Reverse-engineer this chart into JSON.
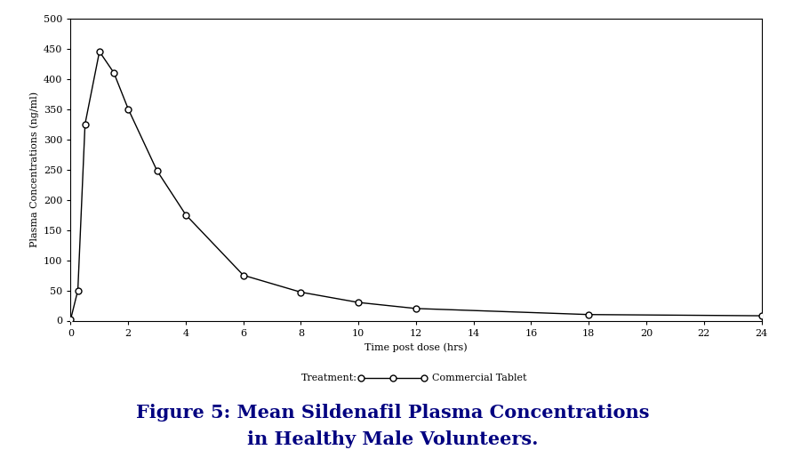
{
  "x_data": [
    0,
    0.25,
    0.5,
    1.0,
    1.5,
    2.0,
    3.0,
    4.0,
    6.0,
    8.0,
    10.0,
    12.0,
    18.0,
    24.0
  ],
  "y_data": [
    2,
    50,
    325,
    445,
    410,
    350,
    248,
    175,
    75,
    47,
    30,
    20,
    10,
    8
  ],
  "title_line1": "Figure 5: Mean Sildenafil Plasma Concentrations",
  "title_line2": "in Healthy Male Volunteers.",
  "xlabel": "Time post dose (hrs)",
  "ylabel": "Plasma Concentrations (ng/ml)",
  "legend_label": "Commercial Tablet",
  "legend_prefix": "Treatment:",
  "xlim": [
    0,
    24
  ],
  "ylim": [
    0,
    500
  ],
  "xticks": [
    0,
    2,
    4,
    6,
    8,
    10,
    12,
    14,
    16,
    18,
    20,
    22,
    24
  ],
  "yticks": [
    0,
    50,
    100,
    150,
    200,
    250,
    300,
    350,
    400,
    450,
    500
  ],
  "line_color": "#000000",
  "marker_facecolor": "#ffffff",
  "marker_edgecolor": "#000000",
  "background_color": "#ffffff",
  "title_color": "#000080",
  "title_fontsize": 15,
  "axis_label_fontsize": 8,
  "tick_fontsize": 8,
  "legend_fontsize": 8
}
